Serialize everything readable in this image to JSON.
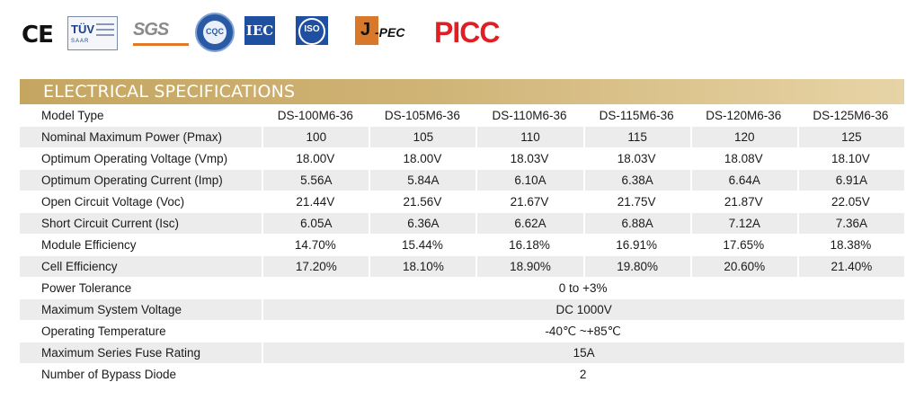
{
  "certifications": {
    "ce": "CE",
    "tuv": {
      "mark": "TÜV",
      "sub": "SAAR"
    },
    "sgs": "SGS",
    "cqc": "CQC",
    "iec": "IEC",
    "iso": "ISO",
    "jpec": {
      "j": "J",
      "rest": "-PEC"
    },
    "picc": "PICC"
  },
  "section_title": "ELECTRICAL SPECIFICATIONS",
  "colors": {
    "title_bar": "#c5a661",
    "row_shade": "#ececec",
    "picc": "#e01f24",
    "jpec": "#d8782a",
    "iec_iso": "#1f4fa0"
  },
  "table": {
    "header": {
      "label": "Model Type",
      "models": [
        "DS-100M6-36",
        "DS-105M6-36",
        "DS-110M6-36",
        "DS-115M6-36",
        "DS-120M6-36",
        "DS-125M6-36"
      ]
    },
    "rows": [
      {
        "label": "Nominal Maximum Power (Pmax)",
        "values": [
          "100",
          "105",
          "110",
          "115",
          "120",
          "125"
        ]
      },
      {
        "label": "Optimum Operating Voltage (Vmp)",
        "values": [
          "18.00V",
          "18.00V",
          "18.03V",
          "18.03V",
          "18.08V",
          "18.10V"
        ]
      },
      {
        "label": "Optimum Operating Current (Imp)",
        "values": [
          "5.56A",
          "5.84A",
          "6.10A",
          "6.38A",
          "6.64A",
          "6.91A"
        ]
      },
      {
        "label": "Open Circuit Voltage (Voc)",
        "values": [
          "21.44V",
          "21.56V",
          "21.67V",
          "21.75V",
          "21.87V",
          "22.05V"
        ]
      },
      {
        "label": "Short Circuit Current (Isc)",
        "values": [
          "6.05A",
          "6.36A",
          "6.62A",
          "6.88A",
          "7.12A",
          "7.36A"
        ]
      },
      {
        "label": "Module Efficiency",
        "values": [
          "14.70%",
          "15.44%",
          "16.18%",
          "16.91%",
          "17.65%",
          "18.38%"
        ]
      },
      {
        "label": "Cell Efficiency",
        "values": [
          "17.20%",
          "18.10%",
          "18.90%",
          "19.80%",
          "20.60%",
          "21.40%"
        ]
      }
    ],
    "common_rows": [
      {
        "label": "Power Tolerance",
        "value": "0 to +3%"
      },
      {
        "label": "Maximum System Voltage",
        "value": "DC 1000V"
      },
      {
        "label": "Operating Temperature",
        "value": "-40℃ ~+85℃"
      },
      {
        "label": "Maximum Series Fuse Rating",
        "value": "15A"
      },
      {
        "label": "Number of Bypass Diode",
        "value": "2"
      }
    ]
  }
}
